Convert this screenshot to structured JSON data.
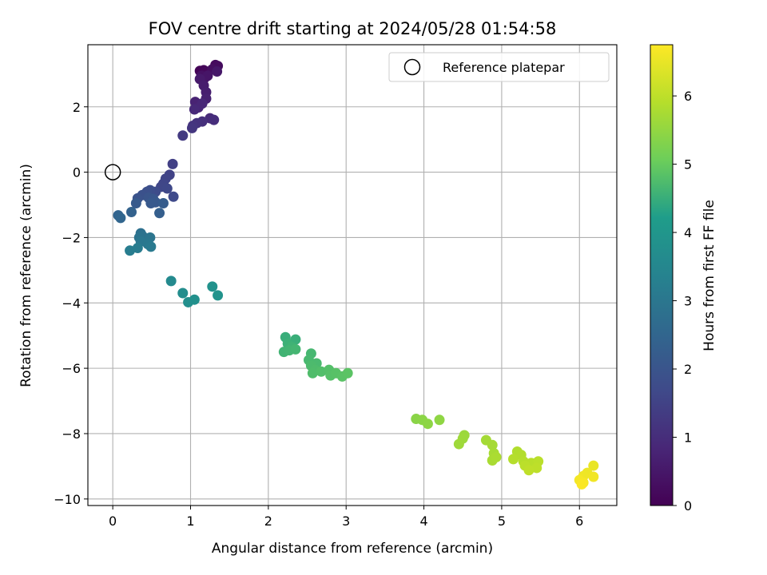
{
  "chart_data": {
    "type": "scatter",
    "title": "FOV centre drift starting at 2024/05/28 01:54:58",
    "xlabel": "Angular distance from reference (arcmin)",
    "ylabel": "Rotation from reference (arcmin)",
    "xlim": [
      -0.32,
      6.48
    ],
    "ylim": [
      -10.2,
      3.9
    ],
    "x_ticks": [
      0,
      1,
      2,
      3,
      4,
      5,
      6
    ],
    "y_ticks": [
      -10,
      -8,
      -6,
      -4,
      -2,
      0,
      2
    ],
    "grid": true,
    "legend": {
      "placement": "top-right",
      "entries": [
        "Reference platepar"
      ]
    },
    "colorbar": {
      "label": "Hours from first FF file",
      "min": 0,
      "max": 6.75,
      "ticks": [
        0,
        1,
        2,
        3,
        4,
        5,
        6
      ],
      "colormap": "viridis"
    },
    "reference_point": {
      "x": 0,
      "y": 0,
      "name": "Reference platepar"
    },
    "points": [
      {
        "x": 1.12,
        "y": 3.1,
        "h": 0.05
      },
      {
        "x": 1.17,
        "y": 3.12,
        "h": 0.1
      },
      {
        "x": 1.2,
        "y": 3.08,
        "h": 0.15
      },
      {
        "x": 1.32,
        "y": 3.28,
        "h": 0.2
      },
      {
        "x": 1.35,
        "y": 3.25,
        "h": 0.25
      },
      {
        "x": 1.28,
        "y": 3.15,
        "h": 0.3
      },
      {
        "x": 1.14,
        "y": 2.95,
        "h": 0.35
      },
      {
        "x": 1.18,
        "y": 2.88,
        "h": 0.4
      },
      {
        "x": 1.22,
        "y": 2.95,
        "h": 0.45
      },
      {
        "x": 1.34,
        "y": 3.08,
        "h": 0.5
      },
      {
        "x": 1.12,
        "y": 2.85,
        "h": 0.55
      },
      {
        "x": 1.17,
        "y": 2.65,
        "h": 0.6
      },
      {
        "x": 1.2,
        "y": 2.45,
        "h": 0.65
      },
      {
        "x": 1.2,
        "y": 2.25,
        "h": 0.7
      },
      {
        "x": 1.06,
        "y": 2.15,
        "h": 0.75
      },
      {
        "x": 1.1,
        "y": 1.98,
        "h": 0.8
      },
      {
        "x": 1.15,
        "y": 2.1,
        "h": 0.85
      },
      {
        "x": 1.05,
        "y": 1.92,
        "h": 0.9
      },
      {
        "x": 1.25,
        "y": 1.65,
        "h": 0.95
      },
      {
        "x": 1.3,
        "y": 1.6,
        "h": 1.0
      },
      {
        "x": 1.15,
        "y": 1.55,
        "h": 1.05
      },
      {
        "x": 1.08,
        "y": 1.5,
        "h": 1.1
      },
      {
        "x": 1.03,
        "y": 1.42,
        "h": 1.15
      },
      {
        "x": 1.02,
        "y": 1.35,
        "h": 1.2
      },
      {
        "x": 0.9,
        "y": 1.12,
        "h": 1.3
      },
      {
        "x": 0.77,
        "y": 0.25,
        "h": 1.45
      },
      {
        "x": 0.73,
        "y": -0.08,
        "h": 1.5
      },
      {
        "x": 0.68,
        "y": -0.2,
        "h": 1.55
      },
      {
        "x": 0.65,
        "y": -0.35,
        "h": 1.6
      },
      {
        "x": 0.62,
        "y": -0.45,
        "h": 1.62
      },
      {
        "x": 0.7,
        "y": -0.5,
        "h": 1.65
      },
      {
        "x": 0.78,
        "y": -0.75,
        "h": 1.7
      },
      {
        "x": 0.55,
        "y": -0.6,
        "h": 1.75
      },
      {
        "x": 0.48,
        "y": -0.55,
        "h": 1.8
      },
      {
        "x": 0.44,
        "y": -0.6,
        "h": 1.85
      },
      {
        "x": 0.38,
        "y": -0.7,
        "h": 1.9
      },
      {
        "x": 0.32,
        "y": -0.8,
        "h": 1.95
      },
      {
        "x": 0.46,
        "y": -0.78,
        "h": 2.0
      },
      {
        "x": 0.52,
        "y": -0.82,
        "h": 2.05
      },
      {
        "x": 0.55,
        "y": -0.92,
        "h": 2.1
      },
      {
        "x": 0.49,
        "y": -0.95,
        "h": 2.12
      },
      {
        "x": 0.3,
        "y": -0.95,
        "h": 2.15
      },
      {
        "x": 0.65,
        "y": -0.95,
        "h": 2.2
      },
      {
        "x": 0.6,
        "y": -1.25,
        "h": 2.3
      },
      {
        "x": 0.24,
        "y": -1.22,
        "h": 2.4
      },
      {
        "x": 0.07,
        "y": -1.32,
        "h": 2.45
      },
      {
        "x": 0.1,
        "y": -1.4,
        "h": 2.5
      },
      {
        "x": 0.36,
        "y": -1.87,
        "h": 2.8
      },
      {
        "x": 0.38,
        "y": -1.95,
        "h": 2.85
      },
      {
        "x": 0.34,
        "y": -2.0,
        "h": 2.9
      },
      {
        "x": 0.48,
        "y": -2.0,
        "h": 2.95
      },
      {
        "x": 0.36,
        "y": -2.12,
        "h": 3.0
      },
      {
        "x": 0.45,
        "y": -2.2,
        "h": 3.05
      },
      {
        "x": 0.49,
        "y": -2.28,
        "h": 3.1
      },
      {
        "x": 0.32,
        "y": -2.32,
        "h": 3.15
      },
      {
        "x": 0.22,
        "y": -2.4,
        "h": 3.2
      },
      {
        "x": 0.75,
        "y": -3.33,
        "h": 3.6
      },
      {
        "x": 0.9,
        "y": -3.7,
        "h": 3.7
      },
      {
        "x": 0.97,
        "y": -3.98,
        "h": 3.75
      },
      {
        "x": 1.05,
        "y": -3.9,
        "h": 3.8
      },
      {
        "x": 1.28,
        "y": -3.5,
        "h": 3.85
      },
      {
        "x": 1.35,
        "y": -3.77,
        "h": 3.9
      },
      {
        "x": 2.22,
        "y": -5.05,
        "h": 4.5
      },
      {
        "x": 2.35,
        "y": -5.12,
        "h": 4.52
      },
      {
        "x": 2.25,
        "y": -5.25,
        "h": 4.55
      },
      {
        "x": 2.3,
        "y": -5.35,
        "h": 4.58
      },
      {
        "x": 2.2,
        "y": -5.5,
        "h": 4.6
      },
      {
        "x": 2.27,
        "y": -5.45,
        "h": 4.62
      },
      {
        "x": 2.35,
        "y": -5.42,
        "h": 4.64
      },
      {
        "x": 2.55,
        "y": -5.55,
        "h": 4.66
      },
      {
        "x": 2.52,
        "y": -5.75,
        "h": 4.68
      },
      {
        "x": 2.62,
        "y": -5.85,
        "h": 4.7
      },
      {
        "x": 2.55,
        "y": -5.92,
        "h": 4.72
      },
      {
        "x": 2.6,
        "y": -6.05,
        "h": 4.74
      },
      {
        "x": 2.57,
        "y": -6.15,
        "h": 4.76
      },
      {
        "x": 2.68,
        "y": -6.1,
        "h": 4.78
      },
      {
        "x": 2.78,
        "y": -6.05,
        "h": 4.8
      },
      {
        "x": 2.8,
        "y": -6.22,
        "h": 4.82
      },
      {
        "x": 2.87,
        "y": -6.15,
        "h": 4.84
      },
      {
        "x": 2.95,
        "y": -6.25,
        "h": 4.86
      },
      {
        "x": 3.02,
        "y": -6.15,
        "h": 4.88
      },
      {
        "x": 3.9,
        "y": -7.55,
        "h": 5.4
      },
      {
        "x": 3.98,
        "y": -7.58,
        "h": 5.42
      },
      {
        "x": 4.05,
        "y": -7.7,
        "h": 5.44
      },
      {
        "x": 4.2,
        "y": -7.58,
        "h": 5.46
      },
      {
        "x": 4.52,
        "y": -8.05,
        "h": 5.6
      },
      {
        "x": 4.5,
        "y": -8.15,
        "h": 5.62
      },
      {
        "x": 4.45,
        "y": -8.32,
        "h": 5.64
      },
      {
        "x": 4.8,
        "y": -8.2,
        "h": 5.7
      },
      {
        "x": 4.88,
        "y": -8.35,
        "h": 5.72
      },
      {
        "x": 4.9,
        "y": -8.6,
        "h": 5.74
      },
      {
        "x": 4.88,
        "y": -8.82,
        "h": 5.76
      },
      {
        "x": 4.93,
        "y": -8.72,
        "h": 5.78
      },
      {
        "x": 5.2,
        "y": -8.55,
        "h": 5.85
      },
      {
        "x": 5.25,
        "y": -8.65,
        "h": 5.87
      },
      {
        "x": 5.15,
        "y": -8.78,
        "h": 5.89
      },
      {
        "x": 5.28,
        "y": -8.85,
        "h": 5.91
      },
      {
        "x": 5.38,
        "y": -8.9,
        "h": 5.93
      },
      {
        "x": 5.47,
        "y": -8.85,
        "h": 5.95
      },
      {
        "x": 5.3,
        "y": -8.98,
        "h": 5.97
      },
      {
        "x": 5.45,
        "y": -9.05,
        "h": 5.99
      },
      {
        "x": 5.35,
        "y": -9.12,
        "h": 6.01
      },
      {
        "x": 6.18,
        "y": -8.98,
        "h": 6.5
      },
      {
        "x": 6.1,
        "y": -9.2,
        "h": 6.55
      },
      {
        "x": 6.05,
        "y": -9.3,
        "h": 6.58
      },
      {
        "x": 6.18,
        "y": -9.32,
        "h": 6.6
      },
      {
        "x": 6.0,
        "y": -9.42,
        "h": 6.63
      },
      {
        "x": 6.05,
        "y": -9.5,
        "h": 6.66
      },
      {
        "x": 6.03,
        "y": -9.55,
        "h": 6.7
      }
    ]
  }
}
